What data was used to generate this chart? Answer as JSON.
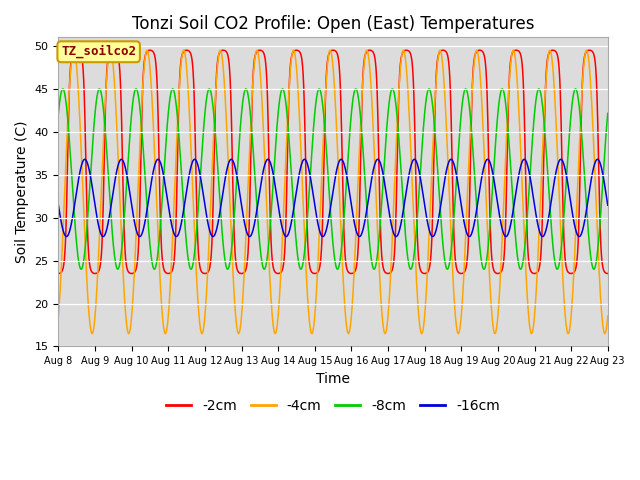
{
  "title": "Tonzi Soil CO2 Profile: Open (East) Temperatures",
  "xlabel": "Time",
  "ylabel": "Soil Temperature (C)",
  "ylim": [
    15,
    51
  ],
  "yticks": [
    15,
    20,
    25,
    30,
    35,
    40,
    45,
    50
  ],
  "n_days": 15,
  "colors": {
    "-2cm": "#FF0000",
    "-4cm": "#FFA500",
    "-8cm": "#00CC00",
    "-16cm": "#0000DD"
  },
  "legend_labels": [
    "-2cm",
    "-4cm",
    "-8cm",
    "-16cm"
  ],
  "legend_title": "TZ_soilco2",
  "background_color": "#DCDCDC",
  "title_fontsize": 12,
  "axis_label_fontsize": 10,
  "tick_fontsize": 8,
  "samples_per_day": 200,
  "depth_params": {
    "-2cm": {
      "amp": 13.0,
      "mean": 36.5,
      "phase": 0.0,
      "sharp": 2.5
    },
    "-4cm": {
      "amp": 16.5,
      "mean": 33.0,
      "phase": 0.08,
      "sharp": 1.0
    },
    "-8cm": {
      "amp": 10.5,
      "mean": 34.5,
      "phase": 0.38,
      "sharp": 1.0
    },
    "-16cm": {
      "amp": 4.5,
      "mean": 32.3,
      "phase": 0.78,
      "sharp": 1.0
    }
  },
  "xtick_labels": [
    "Aug 8",
    "Aug 9",
    "Aug 10",
    "Aug 11",
    "Aug 12",
    "Aug 13",
    "Aug 14",
    "Aug 15",
    "Aug 16",
    "Aug 17",
    "Aug 18",
    "Aug 19",
    "Aug 20",
    "Aug 21",
    "Aug 22",
    "Aug 23"
  ]
}
